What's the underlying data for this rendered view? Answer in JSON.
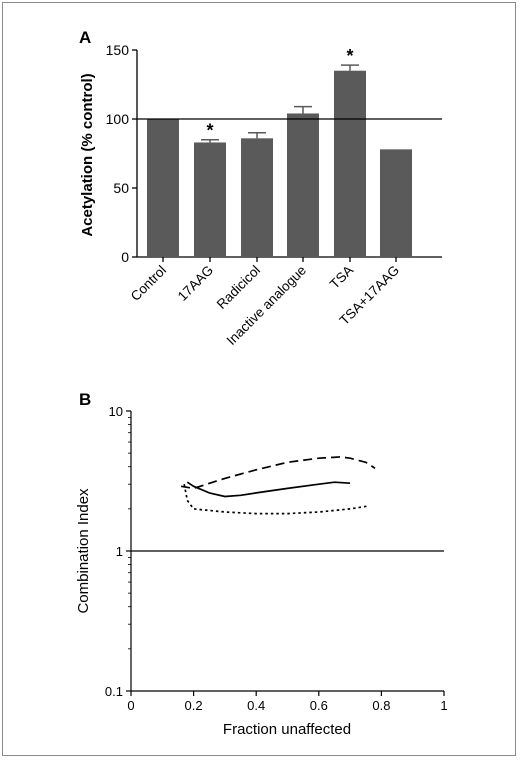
{
  "chart_data": [
    {
      "panel": "A",
      "type": "bar",
      "ylabel": "Acetylation (% control)",
      "categories": [
        "Control",
        "17AAG",
        "Radicicol",
        "Inactive analogue",
        "TSA",
        "TSA+17AAG"
      ],
      "values": [
        100,
        83,
        86,
        104,
        135,
        78
      ],
      "error": [
        0,
        2,
        4,
        5,
        4,
        0
      ],
      "significant": [
        false,
        true,
        false,
        false,
        true,
        false
      ],
      "sig_marker": "*",
      "ylim": [
        0,
        150
      ],
      "yticks": [
        0,
        50,
        100,
        150
      ],
      "reference_line": 100,
      "bar_color": "#5a5a5a"
    },
    {
      "panel": "B",
      "type": "line",
      "xlabel": "Fraction unaffected",
      "ylabel": "Combination Index",
      "xlim": [
        0,
        1
      ],
      "ylim": [
        0.1,
        10
      ],
      "yscale": "log",
      "xticks": [
        0,
        0.2,
        0.4,
        0.6,
        0.8,
        1
      ],
      "xtick_labels": [
        "0",
        "0.2",
        "0.4",
        "0.6",
        "0.8",
        "1"
      ],
      "yticks": [
        0.1,
        1,
        10
      ],
      "ytick_labels": [
        "0.1",
        "1",
        "10"
      ],
      "reference_line": 1,
      "series": [
        {
          "style": "dashed",
          "x": [
            0.16,
            0.2,
            0.3,
            0.4,
            0.5,
            0.6,
            0.67,
            0.7,
            0.75,
            0.78
          ],
          "y": [
            2.9,
            2.8,
            3.3,
            3.8,
            4.3,
            4.6,
            4.7,
            4.6,
            4.3,
            3.9
          ]
        },
        {
          "style": "solid",
          "x": [
            0.18,
            0.2,
            0.25,
            0.3,
            0.35,
            0.4,
            0.5,
            0.6,
            0.65,
            0.7
          ],
          "y": [
            3.1,
            2.9,
            2.6,
            2.45,
            2.5,
            2.6,
            2.8,
            3.0,
            3.1,
            3.05
          ]
        },
        {
          "style": "dotted",
          "x": [
            0.17,
            0.18,
            0.2,
            0.3,
            0.4,
            0.5,
            0.6,
            0.7,
            0.76
          ],
          "y": [
            3.0,
            2.3,
            2.0,
            1.9,
            1.85,
            1.85,
            1.9,
            2.0,
            2.1
          ]
        }
      ]
    }
  ]
}
